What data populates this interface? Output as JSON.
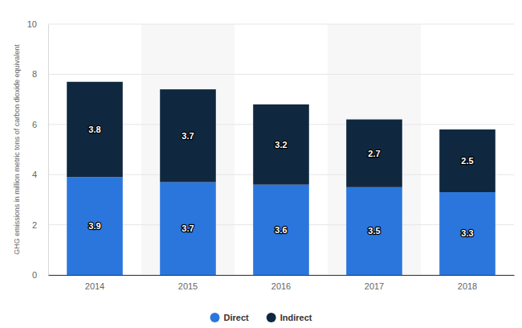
{
  "chart_data": {
    "type": "bar",
    "stacked": true,
    "data_labels": true,
    "grid": true,
    "legend": "bottom",
    "y_label": "GHG emissions in million metric tons of carbon dioxide equivalent",
    "categories": [
      "2014",
      "2015",
      "2016",
      "2017",
      "2018"
    ],
    "series": [
      {
        "name": "Direct",
        "color": "#2a76dd",
        "values": [
          3.9,
          3.7,
          3.6,
          3.5,
          3.3
        ]
      },
      {
        "name": "Indirect",
        "color": "#0f2840",
        "values": [
          3.8,
          3.7,
          3.2,
          2.7,
          2.5
        ]
      }
    ],
    "ylim": [
      0,
      10
    ],
    "yticks": [
      0,
      2,
      4,
      6,
      8,
      10
    ]
  }
}
